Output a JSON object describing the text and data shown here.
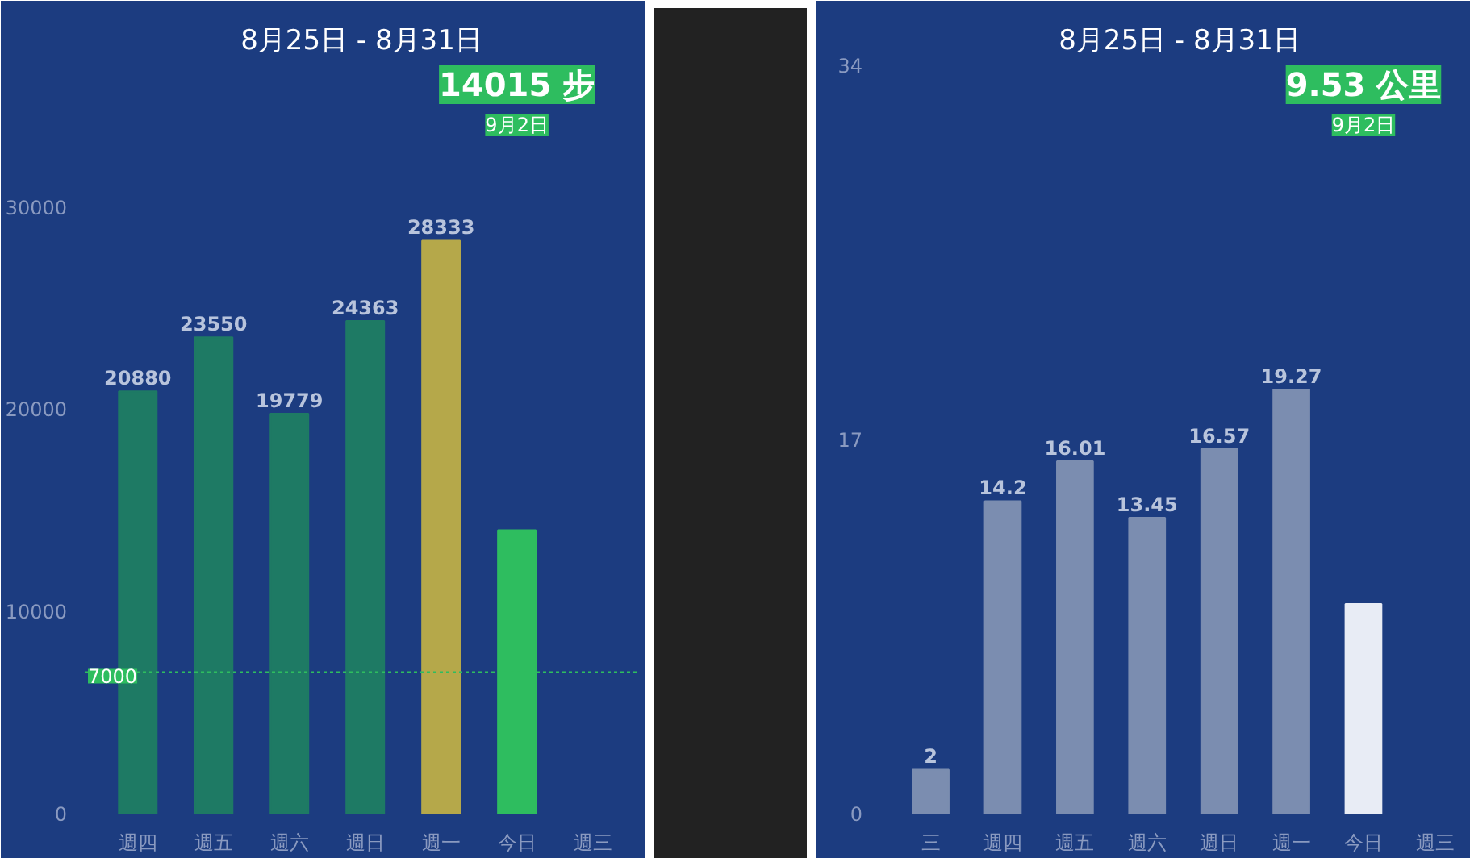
{
  "chart_data": [
    {
      "type": "bar",
      "title": "8月25日 - 8月31日",
      "categories": [
        "週四",
        "週五",
        "週六",
        "週日",
        "週一",
        "今日",
        "週三"
      ],
      "values": [
        20880,
        23550,
        19779,
        24363,
        28333,
        14015,
        null
      ],
      "colors": [
        "#1e7a64",
        "#1e7a64",
        "#1e7a64",
        "#1e7a64",
        "#b5a84a",
        "#2ebd5f",
        "#1e7a64"
      ],
      "value_labels": [
        "20880",
        "23550",
        "19779",
        "24363",
        "28333",
        null,
        null
      ],
      "ylim": [
        0,
        37000
      ],
      "yticks": [
        0,
        10000,
        20000,
        30000
      ],
      "ref_lines": [
        {
          "axis": "y",
          "value": 7000,
          "label": "7000",
          "color": "#2ebd5f",
          "line_style": "dotted"
        }
      ],
      "annotations": [
        "14015 步",
        "9月2日"
      ]
    },
    {
      "type": "bar",
      "title": "8月25日 - 8月31日",
      "categories": [
        "三",
        "週四",
        "週五",
        "週六",
        "週日",
        "週一",
        "今日",
        "週三"
      ],
      "values": [
        2,
        14.2,
        16.01,
        13.45,
        16.57,
        19.27,
        9.53,
        null
      ],
      "colors": [
        "#7b8db0",
        "#7b8db0",
        "#7b8db0",
        "#7b8db0",
        "#7b8db0",
        "#7b8db0",
        "#e8ecf5",
        "#7b8db0"
      ],
      "value_labels": [
        "2",
        "14.2",
        "16.01",
        "13.45",
        "16.57",
        "19.27",
        null,
        null
      ],
      "ylim": [
        0,
        34
      ],
      "yticks": [
        0,
        17,
        34
      ],
      "annotations": [
        "9.53 公里",
        "9月2日"
      ]
    }
  ]
}
